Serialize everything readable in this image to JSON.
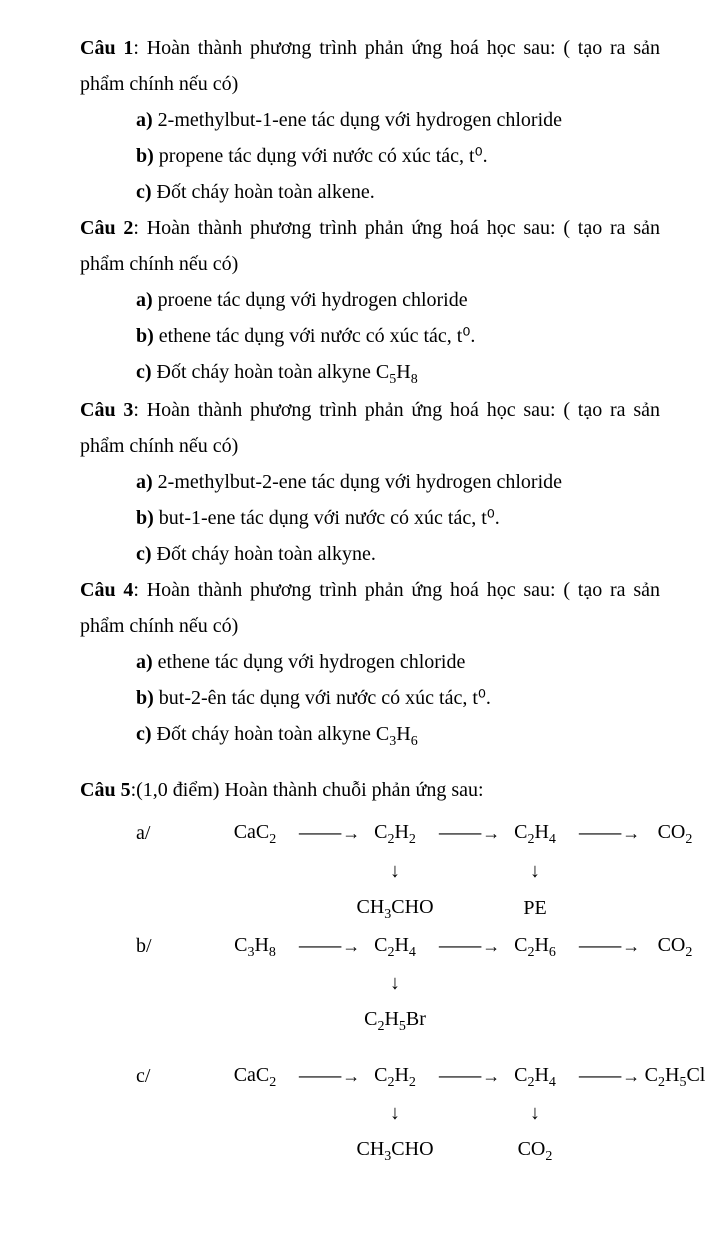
{
  "questions": [
    {
      "num": "Câu 1",
      "intro": ": Hoàn thành phương trình phản ứng hoá học sau: ( tạo ra sản phẩm chính nếu có)",
      "items": [
        {
          "letter": "a)",
          "text": " 2-methylbut-1-ene tác dụng với hydrogen chloride"
        },
        {
          "letter": "b)",
          "text": " propene tác dụng với nước có xúc tác, t⁰."
        },
        {
          "letter": "c)",
          "text": "  Đốt cháy hoàn toàn alkene."
        }
      ]
    },
    {
      "num": "Câu 2",
      "intro": ": Hoàn thành phương trình phản ứng hoá học sau: ( tạo ra sản phẩm chính nếu có)",
      "items": [
        {
          "letter": "a)",
          "text": " proene tác dụng với hydrogen chloride"
        },
        {
          "letter": "b)",
          "text": " ethene tác dụng với nước có xúc tác, t⁰."
        },
        {
          "letter": "c)",
          "text_html": "  Đốt cháy hoàn toàn alkyne C<sub>5</sub>H<sub>8</sub>"
        }
      ]
    },
    {
      "num": "Câu 3",
      "intro": ": Hoàn thành phương trình phản ứng hoá học sau: ( tạo ra sản phẩm chính nếu có)",
      "items": [
        {
          "letter": "a)",
          "text": " 2-methylbut-2-ene tác dụng với hydrogen chloride"
        },
        {
          "letter": "b)",
          "text": " but-1-ene tác dụng với nước có xúc tác, t⁰."
        },
        {
          "letter": "c)",
          "text": "  Đốt cháy hoàn toàn alkyne."
        }
      ]
    },
    {
      "num": "Câu 4",
      "intro": ": Hoàn thành phương trình phản ứng hoá học sau: ( tạo ra sản phẩm chính nếu có)",
      "items": [
        {
          "letter": "a)",
          "text": " ethene tác dụng với hydrogen chloride"
        },
        {
          "letter": "b)",
          "text": " but-2-ên tác dụng với nước có xúc tác, t⁰."
        },
        {
          "letter": "c)",
          "text_html": "  Đốt cháy hoàn toàn alkyne C<sub>3</sub>H<sub>6</sub>"
        }
      ]
    }
  ],
  "q5": {
    "num": "Câu 5",
    "intro": ":(1,0 điểm) Hoàn thành chuỗi phản ứng sau:"
  },
  "chains": {
    "a": {
      "label": "a/",
      "n1": "CaC<sub>2</sub>",
      "n2": "C<sub>2</sub>H<sub>2</sub>",
      "n3": "C<sub>2</sub>H<sub>4</sub>",
      "n4": "CO<sub>2</sub>",
      "d2": "CH<sub>3</sub>CHO",
      "d3": "PE"
    },
    "b": {
      "label": "b/",
      "n1": "C<sub>3</sub>H<sub>8</sub>",
      "n2": "C<sub>2</sub>H<sub>4</sub>",
      "n3": "C<sub>2</sub>H<sub>6</sub>",
      "n4": "CO<sub>2</sub>",
      "d2": "C<sub>2</sub>H<sub>5</sub>Br"
    },
    "c": {
      "label": "c/",
      "n1": "CaC<sub>2</sub>",
      "n2": "C<sub>2</sub>H<sub>2</sub>",
      "n3": "C<sub>2</sub>H<sub>4</sub>",
      "n4": "C<sub>2</sub>H<sub>5</sub>Cl",
      "d2": "CH<sub>3</sub>CHO",
      "d3": "CO<sub>2</sub>"
    }
  },
  "colors": {
    "text": "#000000",
    "bg": "#ffffff"
  },
  "font": {
    "family": "Times New Roman",
    "size_pt": 15
  },
  "layout": {
    "col_w": {
      "label": 132,
      "node": 86,
      "arrow": 54
    }
  },
  "arrow_glyph": "⸻→",
  "down_glyph": "↓"
}
